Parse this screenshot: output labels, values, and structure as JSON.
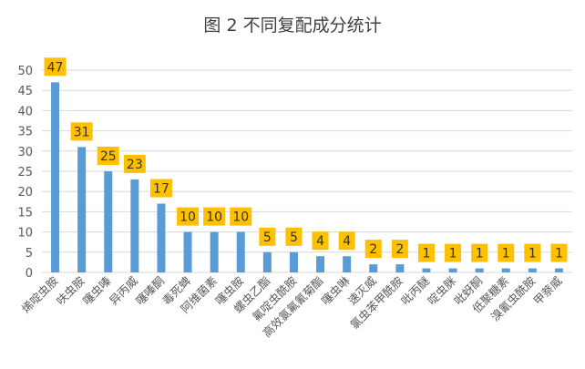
{
  "chart_data": {
    "type": "bar",
    "title": "图 2  不同复配成分统计",
    "categories": [
      "烯啶虫胺",
      "呋虫胺",
      "噻虫嗪",
      "异丙威",
      "噻嗪酮",
      "毒死蜱",
      "阿维菌素",
      "噻虫胺",
      "螺虫乙酯",
      "氟啶虫酰胺",
      "高效氯氟氰菊酯",
      "噻虫啉",
      "速灭威",
      "氯虫苯甲酰胺",
      "吡丙醚",
      "啶虫脒",
      "吡蚜酮",
      "低聚糖素",
      "溴氰虫酰胺",
      "甲萘威"
    ],
    "values": [
      47,
      31,
      25,
      23,
      17,
      10,
      10,
      10,
      5,
      5,
      4,
      4,
      2,
      2,
      1,
      1,
      1,
      1,
      1,
      1
    ],
    "yticks": [
      0,
      5,
      10,
      15,
      20,
      25,
      30,
      35,
      40,
      45,
      50
    ],
    "ylim": [
      0,
      50
    ],
    "grid": true,
    "legend": "none",
    "colors": {
      "bar": "#5b9bd5",
      "label_bg": "#ffc000",
      "label_text": "#333333",
      "grid": "#d9d9d9",
      "axis_text": "#595959",
      "title": "#404040"
    }
  }
}
